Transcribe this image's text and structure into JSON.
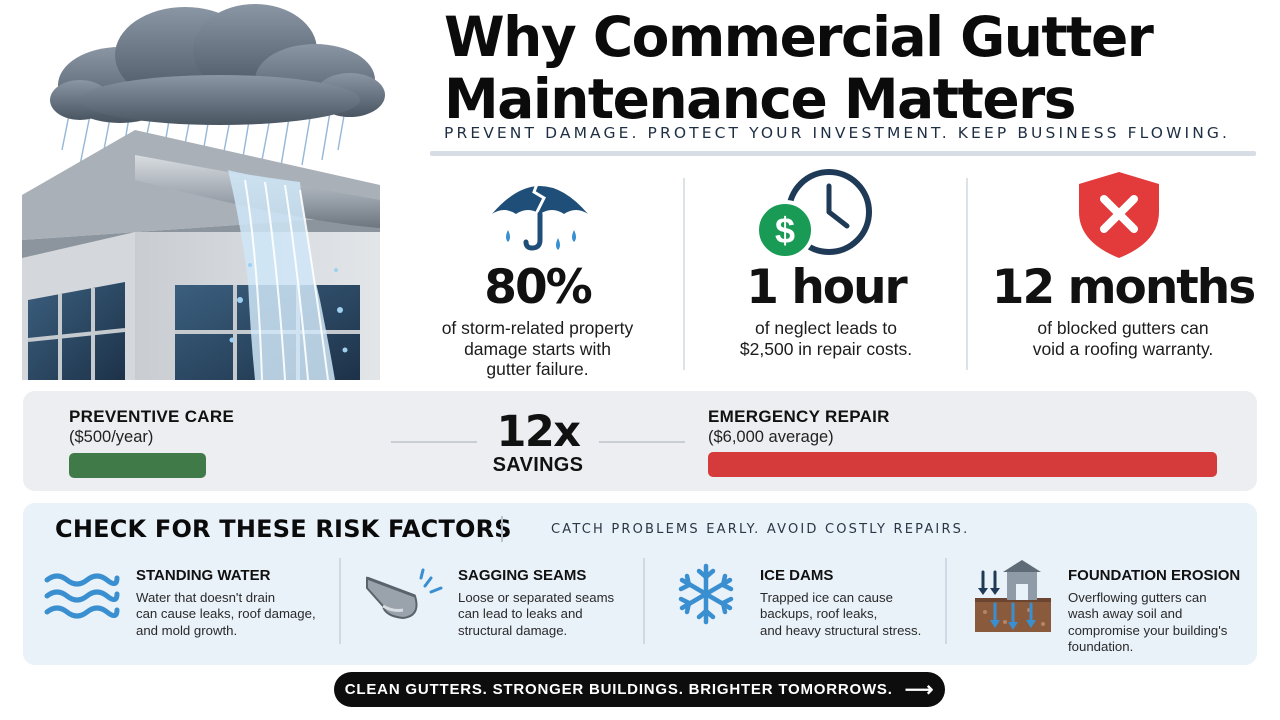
{
  "header": {
    "title_line1": "Why Commercial Gutter",
    "title_line2": "Maintenance Matters",
    "tagline": "PREVENT DAMAGE. PROTECT YOUR INVESTMENT. KEEP BUSINESS FLOWING."
  },
  "hero": {
    "icon": "storm-building-illustration"
  },
  "stats": [
    {
      "icon": "broken-umbrella-icon",
      "value": "80%",
      "desc": [
        "of storm-related property",
        "damage starts with",
        "gutter failure."
      ]
    },
    {
      "icon": "dollar-clock-icon",
      "value": "1 hour",
      "desc": [
        "of neglect leads to",
        "$2,500 in repair costs."
      ]
    },
    {
      "icon": "shield-x-icon",
      "value": "12 months",
      "desc": [
        "of blocked gutters can",
        "void a roofing warranty."
      ]
    }
  ],
  "comparison": {
    "preventive_label": "PREVENTIVE CARE",
    "preventive_cost": "($500/year)",
    "ratio": "12x",
    "ratio_label": "SAVINGS",
    "emergency_label": "EMERGENCY REPAIR",
    "emergency_cost": "($6,000 average)",
    "preventive_amount": 500,
    "emergency_amount": 6000,
    "preventive_color": "#3f7a48",
    "emergency_color": "#d63b3b"
  },
  "risk": {
    "title": "CHECK FOR THESE RISK FACTORS",
    "tagline": "CATCH PROBLEMS EARLY. AVOID COSTLY REPAIRS.",
    "factors": [
      {
        "icon": "water-waves-icon",
        "title": "STANDING WATER",
        "desc": [
          "Water that doesn't drain",
          "can cause leaks, roof damage,",
          "and mold growth."
        ]
      },
      {
        "icon": "gutter-seam-icon",
        "title": "SAGGING SEAMS",
        "desc": [
          "Loose or separated seams",
          "can lead to leaks and",
          "structural damage."
        ]
      },
      {
        "icon": "snowflake-icon",
        "title": "ICE DAMS",
        "desc": [
          "Trapped ice can cause",
          "backups, roof leaks,",
          "and heavy structural stress."
        ]
      },
      {
        "icon": "foundation-erosion-icon",
        "title": "FOUNDATION EROSION",
        "desc": [
          "Overflowing gutters can",
          "wash away soil and",
          "compromise your building's",
          "foundation."
        ]
      }
    ]
  },
  "cta": {
    "label": "CLEAN GUTTERS. STRONGER BUILDINGS. BRIGHTER TOMORROWS.",
    "arrow": "⟶"
  },
  "colors": {
    "accent_blue": "#1f6f99",
    "accent_green": "#1a9b55",
    "alert_red": "#e33b3b",
    "icon_blue": "#3a8fd0"
  }
}
